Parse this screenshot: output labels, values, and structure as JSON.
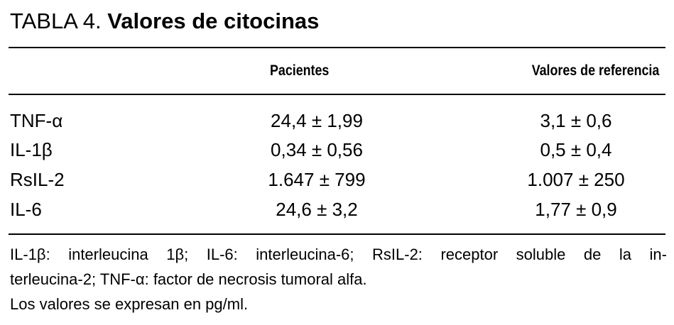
{
  "title": {
    "label": "TABLA 4.",
    "text": "Valores de citocinas"
  },
  "table": {
    "headers": [
      "Pacientes",
      "Valores de referencia"
    ],
    "rows": [
      [
        "TNF-α",
        "24,4 ± 1,99",
        "3,1 ± 0,6"
      ],
      [
        "IL-1β",
        "0,34 ± 0,56",
        "0,5 ± 0,4"
      ],
      [
        "RsIL-2",
        "1.647 ± 799",
        "1.007 ± 250"
      ],
      [
        "IL-6",
        "24,6 ± 3,2",
        "1,77 ± 0,9"
      ]
    ]
  },
  "notes": [
    "IL-1β: interleucina 1β; IL-6: interleucina-6; RsIL-2: receptor soluble de la in-",
    "terleucina-2; TNF-α: factor de necrosis tumoral alfa.",
    "Los valores se expresan en pg/ml."
  ]
}
